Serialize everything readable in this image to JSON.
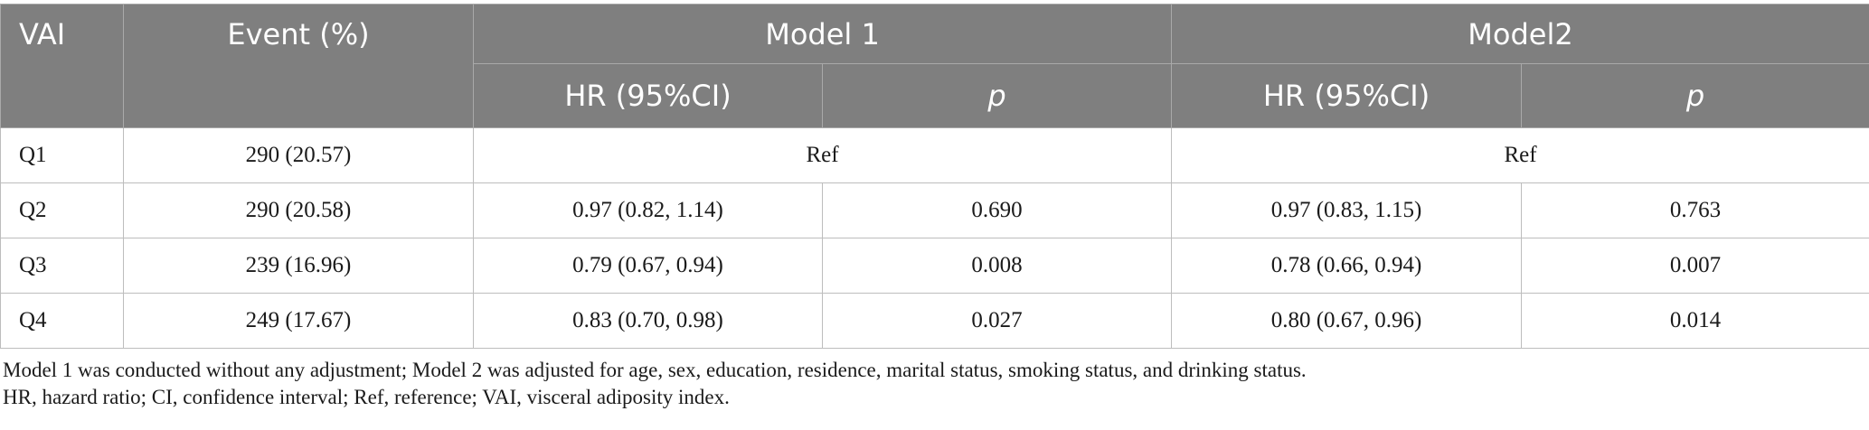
{
  "table": {
    "headers": {
      "vai": "VAI",
      "event": "Event (%)",
      "model1": "Model 1",
      "model2": "Model2",
      "hr_label": "HR (95%CI)",
      "p_label": "p"
    },
    "rows": [
      {
        "label": "Q1",
        "event": "290 (20.57)",
        "model1_ref": "Ref",
        "model2_ref": "Ref"
      },
      {
        "label": "Q2",
        "event": "290 (20.58)",
        "m1_hr": "0.97 (0.82, 1.14)",
        "m1_p": "0.690",
        "m2_hr": "0.97 (0.83, 1.15)",
        "m2_p": "0.763"
      },
      {
        "label": "Q3",
        "event": "239 (16.96)",
        "m1_hr": "0.79 (0.67, 0.94)",
        "m1_p": "0.008",
        "m2_hr": "0.78 (0.66, 0.94)",
        "m2_p": "0.007"
      },
      {
        "label": "Q4",
        "event": "249 (17.67)",
        "m1_hr": "0.83 (0.70, 0.98)",
        "m1_p": "0.027",
        "m2_hr": "0.80 (0.67, 0.96)",
        "m2_p": "0.014"
      }
    ]
  },
  "footnotes": [
    "Model 1 was conducted without any adjustment; Model 2 was adjusted for age, sex, education, residence, marital status, smoking status, and drinking status.",
    "HR, hazard ratio; CI, confidence interval; Ref, reference; VAI, visceral adiposity index."
  ],
  "colors": {
    "header_bg": "#7f7f7f",
    "header_text": "#ffffff",
    "grid": "#bdbdbd"
  }
}
